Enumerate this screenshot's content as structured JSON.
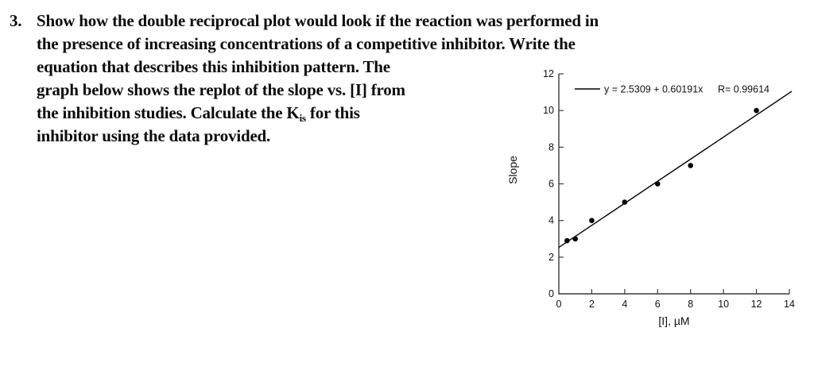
{
  "question": {
    "number": "3.",
    "line1": "Show how the double reciprocal plot would look if the reaction was performed in",
    "line2": "the presence of increasing concentrations of a competitive inhibitor. Write the",
    "line3": "equation that describes this inhibition pattern. The",
    "line4": "graph below shows the replot of the slope vs. [I] from",
    "line5_pre": "the inhibition studies. Calculate the K",
    "line5_sub": "is",
    "line5_post": " for this",
    "line6": "inhibitor using the data provided."
  },
  "chart_data": {
    "type": "scatter",
    "title": "",
    "xlabel": "[I], µM",
    "ylabel": "Slope",
    "x": [
      0.5,
      1,
      2,
      4,
      6,
      8,
      12
    ],
    "y": [
      2.9,
      3,
      4,
      5,
      6,
      7,
      10
    ],
    "fit_line": {
      "equation": "y = 2.5309 + 0.60191x",
      "intercept": 2.5309,
      "slope": 0.60191,
      "r": 0.99614,
      "r_label": "R= 0.99614",
      "x_start": 0,
      "x_end": 14.15
    },
    "xlim": [
      0,
      14
    ],
    "ylim": [
      0,
      12
    ],
    "x_ticks": [
      0,
      2,
      4,
      6,
      8,
      10,
      12,
      14
    ],
    "y_ticks": [
      0,
      2,
      4,
      6,
      8,
      10,
      12
    ],
    "grid": false,
    "legend_position": "top-left-inside",
    "point_color": "#000000",
    "line_color": "#000000",
    "axis_color": "#3a3a3a"
  }
}
